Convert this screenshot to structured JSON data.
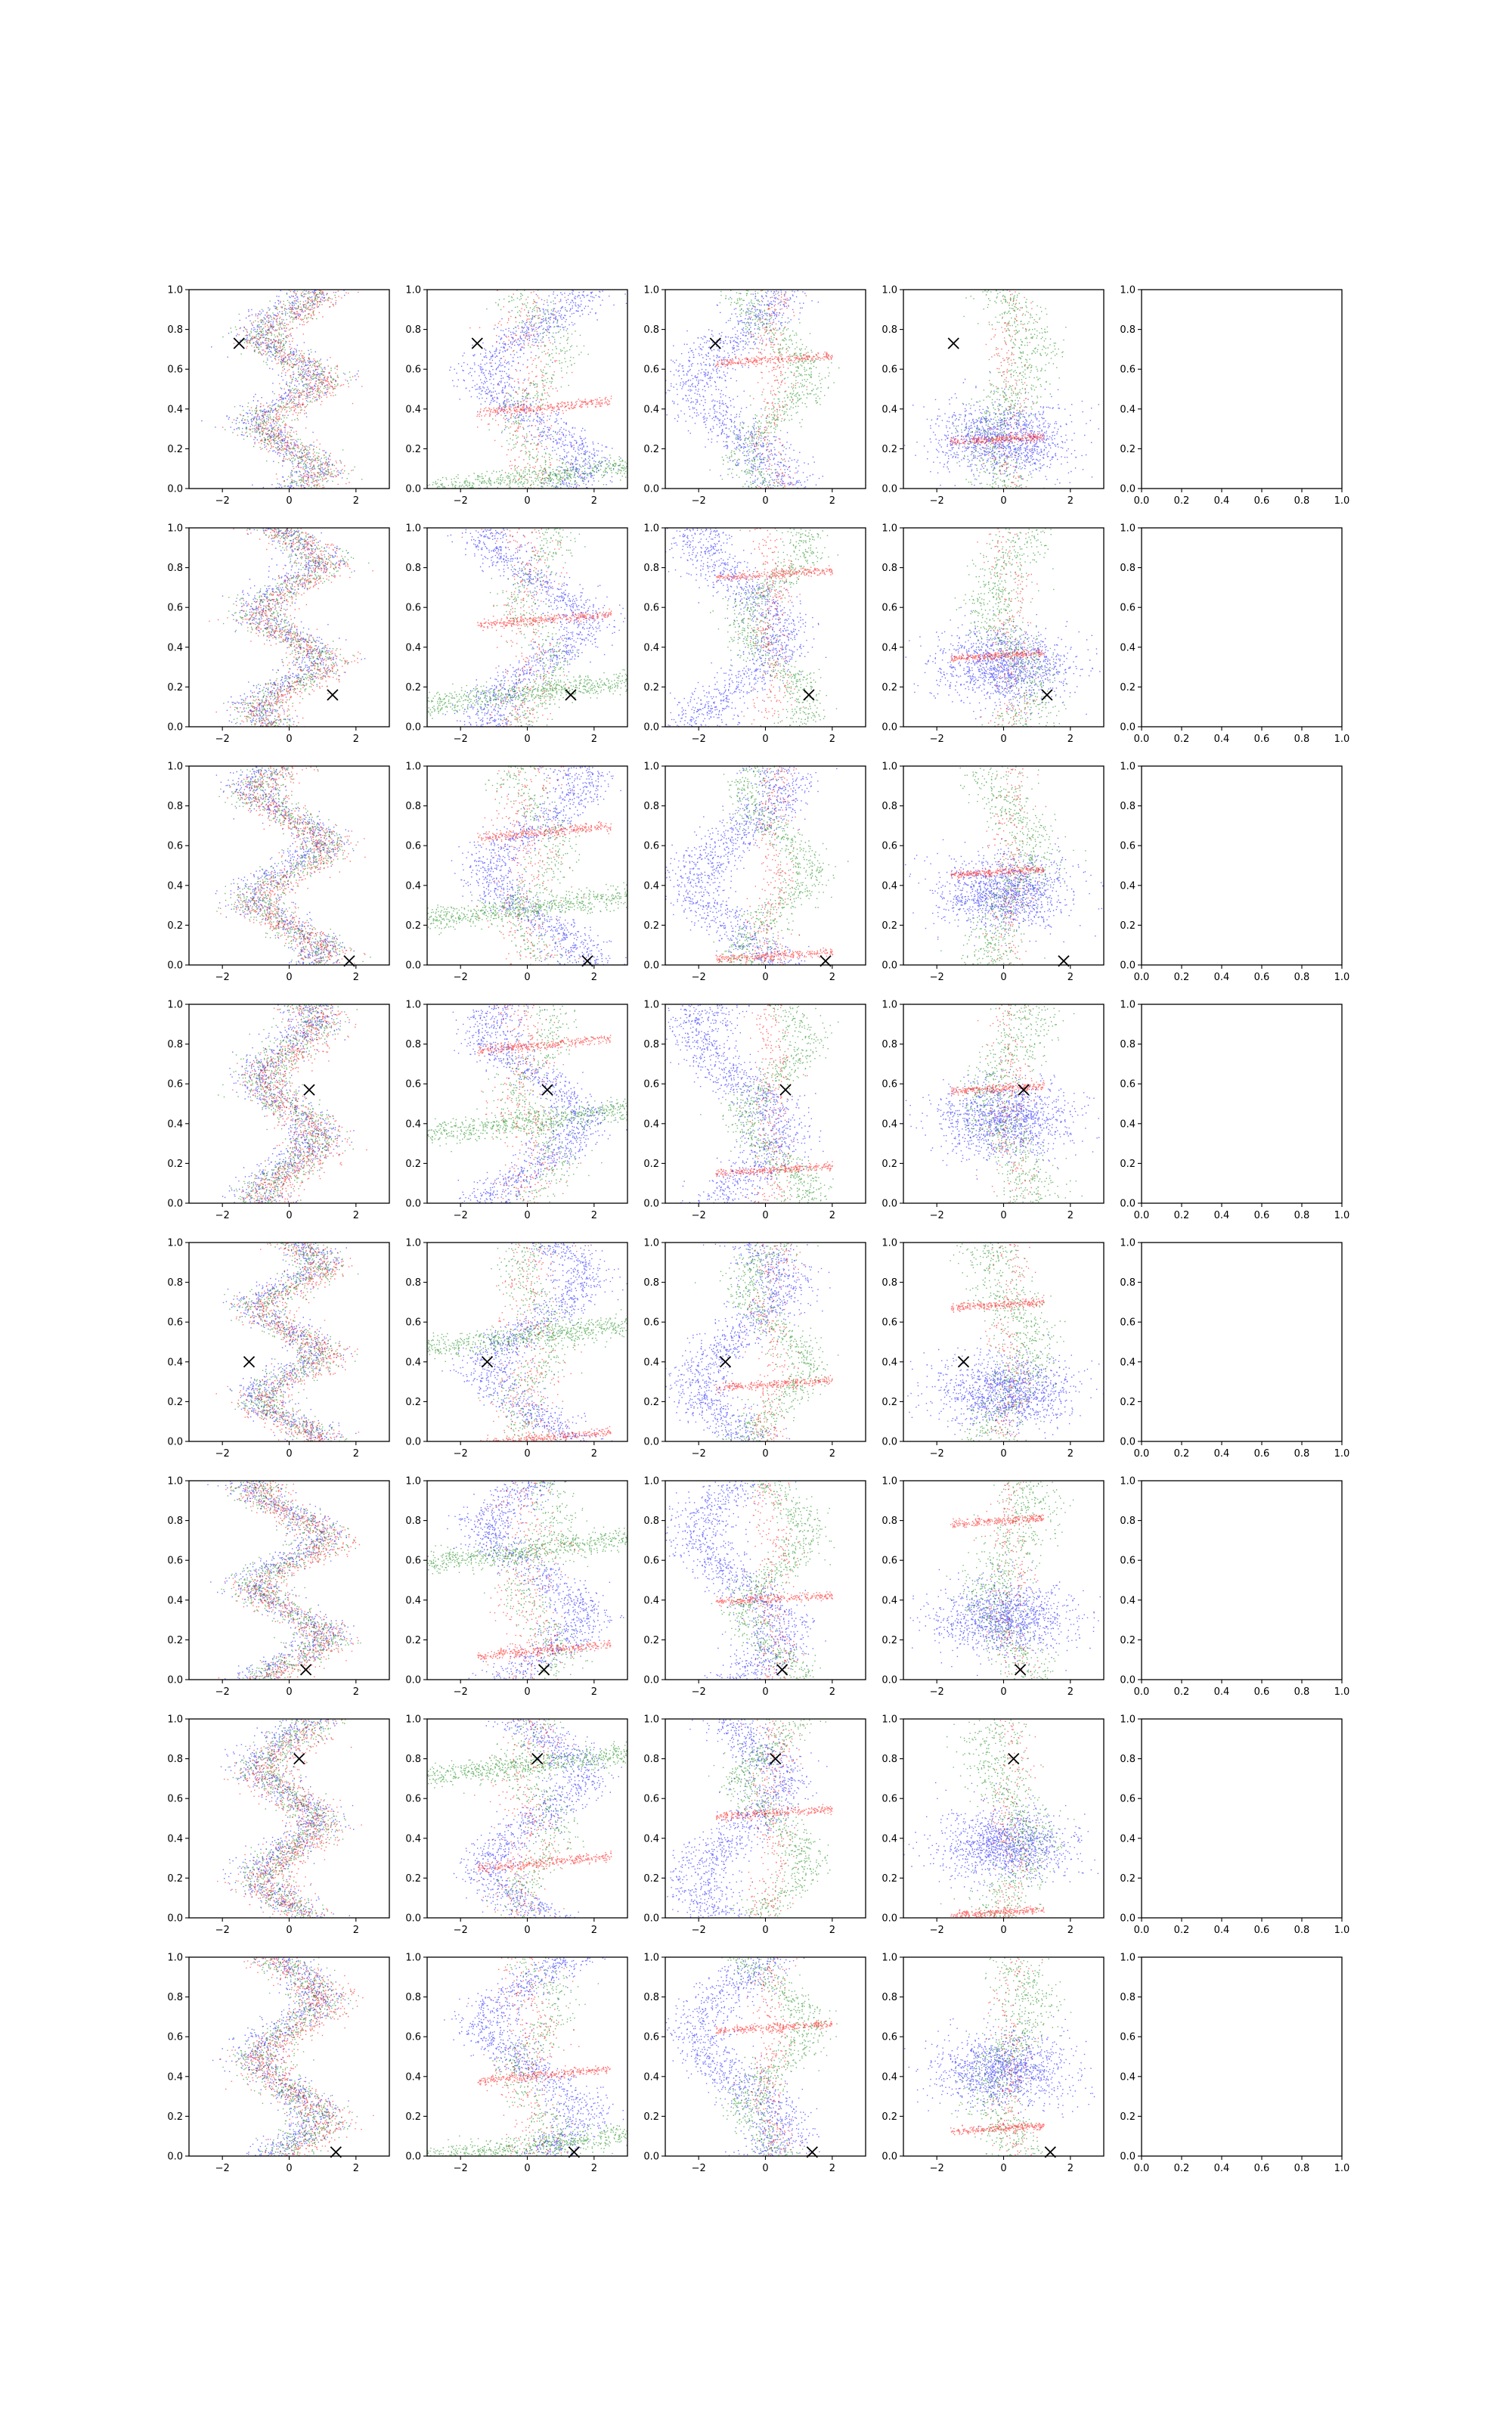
{
  "figure": {
    "rows": 8,
    "cols": 5,
    "colors": {
      "blue": "#0000ff",
      "green": "#008000",
      "red": "#ff0000",
      "marker": "#000000"
    }
  },
  "chart_data": {
    "type": "scatter",
    "title": "",
    "xlabel": "",
    "ylabel": "",
    "scatter_xlim": [
      -3,
      3
    ],
    "scatter_ylim": [
      0,
      1
    ],
    "scatter_xticks": [
      -2,
      0,
      2
    ],
    "scatter_xtick_labels": [
      "−2",
      "0",
      "2"
    ],
    "empty_ticks": [
      0.0,
      0.2,
      0.4,
      0.6,
      0.8,
      1.0
    ],
    "empty_tick_labels": [
      "0.0",
      "0.2",
      "0.4",
      "0.6",
      "0.8",
      "1.0"
    ],
    "yticks": [
      0.0,
      0.2,
      0.4,
      0.6,
      0.8,
      1.0
    ],
    "ytick_labels": [
      "0.0",
      "0.2",
      "0.4",
      "0.6",
      "0.8",
      "1.0"
    ],
    "grid": false,
    "legend": "none",
    "marker_points": [
      {
        "row": 1,
        "x": -1.5,
        "y": 0.73
      },
      {
        "row": 2,
        "x": 1.3,
        "y": 0.16
      },
      {
        "row": 3,
        "x": 1.8,
        "y": 0.02
      },
      {
        "row": 4,
        "x": 0.6,
        "y": 0.57
      },
      {
        "row": 5,
        "x": -1.2,
        "y": 0.4
      },
      {
        "row": 6,
        "x": 0.5,
        "y": 0.05
      },
      {
        "row": 7,
        "x": 0.3,
        "y": 0.8
      },
      {
        "row": 8,
        "x": 1.4,
        "y": 0.02
      }
    ],
    "empty_column": 5
  }
}
